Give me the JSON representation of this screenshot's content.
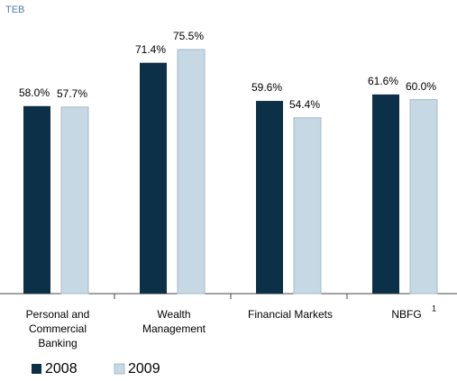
{
  "chart_data": {
    "type": "bar",
    "subtitle": "TEB",
    "categories": [
      "Personal and\nCommercial\nBanking",
      "Wealth\nManagement",
      "Financial Markets",
      "NBFG"
    ],
    "footnote_marker": "1",
    "series": [
      {
        "name": "2008",
        "color": "#0d3049",
        "values": [
          58.0,
          71.4,
          59.6,
          61.6
        ],
        "value_labels": [
          "58.0%",
          "71.4%",
          "59.6%",
          "61.6%"
        ]
      },
      {
        "name": "2009",
        "color": "#c6d8e3",
        "values": [
          57.7,
          75.5,
          54.4,
          60.0
        ],
        "value_labels": [
          "57.7%",
          "75.5%",
          "54.4%",
          "60.0%"
        ]
      }
    ]
  }
}
